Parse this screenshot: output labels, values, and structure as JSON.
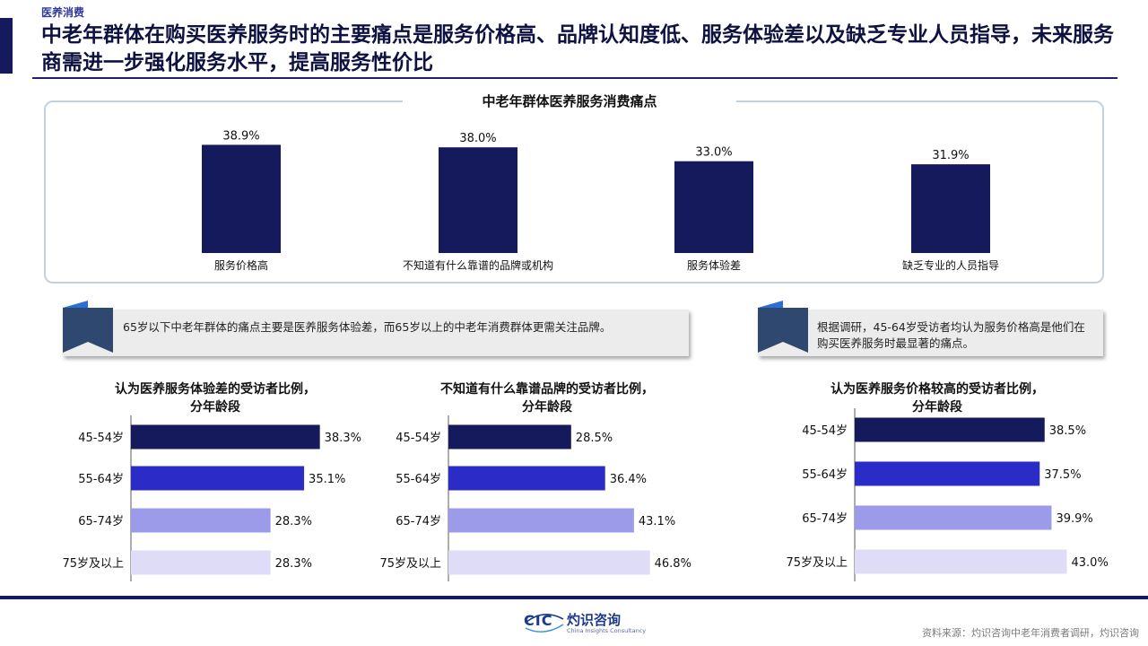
{
  "header": {
    "section_tag": "医养消费",
    "title": "中老年群体在购买医养服务时的主要痛点是服务价格高、品牌认知度低、服务体验差以及缺乏专业人员指导，未来服务商需进一步强化服务水平，提高服务性价比"
  },
  "top_chart_title": "中老年群体医养服务消费痛点",
  "callouts": {
    "left": "65岁以下中老年群体的痛点主要是医养服务体验差，而65岁以上的中老年消费群体更需关注品牌。",
    "right": "根据调研，45-64岁受访者均认为服务价格高是他们在购买医养服务时最显著的痛点。"
  },
  "subcharts": {
    "experience_title_line1": "认为医养服务体验差的受访者比例，",
    "experience_title_line2": "分年龄段",
    "brand_title_line1": "不知道有什么靠谱品牌的受访者比例，",
    "brand_title_line2": "分年龄段",
    "price_title_line1": "认为医养服务价格较高的受访者比例，",
    "price_title_line2": "分年龄段"
  },
  "colors": {
    "navy": "#141a5c",
    "blue": "#2b2bc8",
    "lavender": "#9b9bea",
    "pale": "#dedcf6"
  },
  "chart_data": [
    {
      "type": "bar",
      "title": "中老年群体医养服务消费痛点",
      "categories": [
        "服务价格高",
        "不知道有什么靠谱的品牌或机构",
        "服务体验差",
        "缺乏专业的人员指导"
      ],
      "values": [
        38.9,
        38.0,
        33.0,
        31.9
      ],
      "labels": [
        "38.9%",
        "38.0%",
        "33.0%",
        "31.9%"
      ],
      "ylim": [
        0,
        40
      ],
      "grid": false
    },
    {
      "type": "bar",
      "orientation": "horizontal",
      "title": "认为医养服务体验差的受访者比例，分年龄段",
      "categories": [
        "45-54岁",
        "55-64岁",
        "65-74岁",
        "75岁及以上"
      ],
      "values": [
        38.3,
        35.1,
        28.3,
        28.3
      ],
      "labels": [
        "38.3%",
        "35.1%",
        "28.3%",
        "28.3%"
      ],
      "xlim": [
        0,
        50
      ]
    },
    {
      "type": "bar",
      "orientation": "horizontal",
      "title": "不知道有什么靠谱品牌的受访者比例，分年龄段",
      "categories": [
        "45-54岁",
        "55-64岁",
        "65-74岁",
        "75岁及以上"
      ],
      "values": [
        28.5,
        36.4,
        43.1,
        46.8
      ],
      "labels": [
        "28.5%",
        "36.4%",
        "43.1%",
        "46.8%"
      ],
      "xlim": [
        0,
        50
      ]
    },
    {
      "type": "bar",
      "orientation": "horizontal",
      "title": "认为医养服务价格较高的受访者比例，分年龄段",
      "categories": [
        "45-54岁",
        "55-64岁",
        "65-74岁",
        "75岁及以上"
      ],
      "values": [
        38.5,
        37.5,
        39.9,
        43.0
      ],
      "labels": [
        "38.5%",
        "37.5%",
        "39.9%",
        "43.0%"
      ],
      "xlim": [
        0,
        50
      ]
    }
  ],
  "footer": {
    "logo_abbr": "CIC",
    "logo_cn": "灼识咨询",
    "logo_en": "China Insights Consultancy",
    "source": "资料来源：灼识咨询中老年消费者调研，灼识咨询"
  }
}
